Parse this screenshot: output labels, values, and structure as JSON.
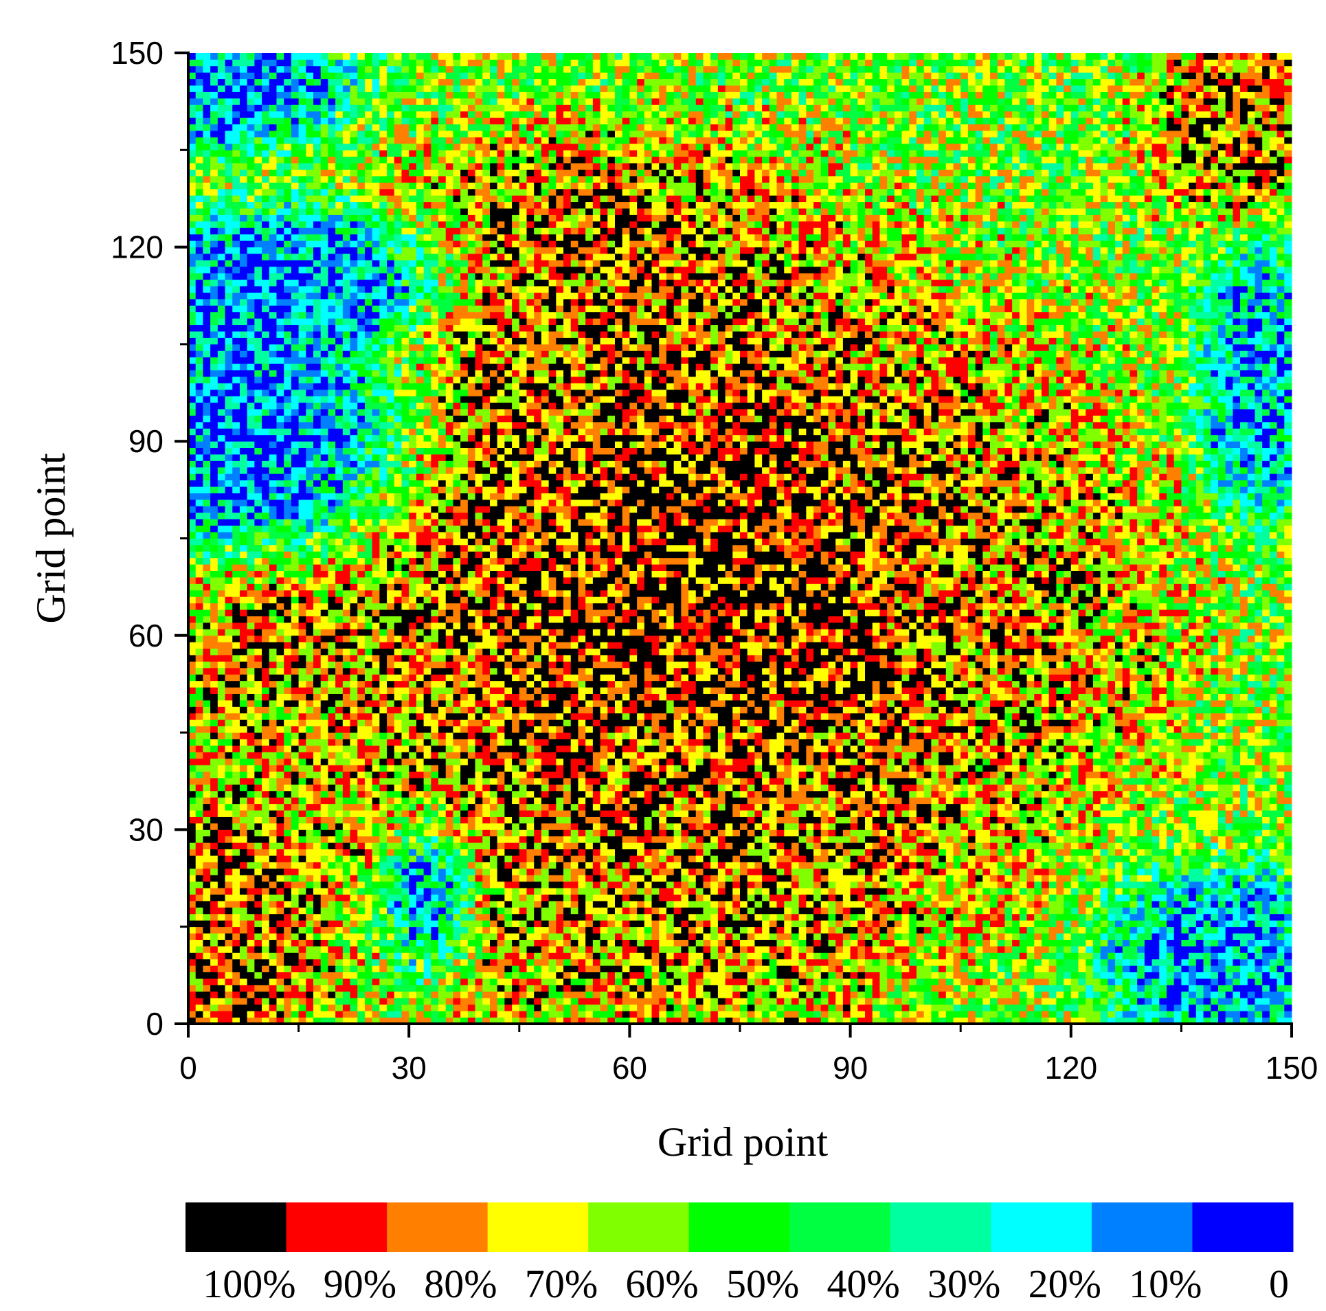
{
  "chart_data": {
    "type": "heatmap",
    "title": "",
    "xlabel": "Grid point",
    "ylabel": "Grid point",
    "xlim": [
      0,
      150
    ],
    "ylim": [
      0,
      150
    ],
    "grid_size": 150,
    "grid": false,
    "x_ticks": [
      "0",
      "30",
      "60",
      "90",
      "120",
      "150"
    ],
    "y_ticks": [
      "0",
      "30",
      "60",
      "90",
      "120",
      "150"
    ],
    "x_minor_ticks": [
      15,
      45,
      75,
      105,
      135
    ],
    "y_minor_ticks": [
      15,
      45,
      75,
      105,
      135
    ],
    "legend": {
      "placement": "bottom",
      "colors": [
        "#000000",
        "#ff0000",
        "#ff8000",
        "#ffff00",
        "#80ff00",
        "#00ff00",
        "#00ff40",
        "#00ffa0",
        "#00ffff",
        "#0080ff",
        "#0000ff"
      ],
      "labels": [
        "100%",
        "90%",
        "80%",
        "70%",
        "60%",
        "50%",
        "40%",
        "30%",
        "20%",
        "10%",
        "0"
      ]
    },
    "regions": [
      {
        "description": "center high-value core",
        "cx": 70,
        "cy": 65,
        "rx": 38,
        "ry": 38,
        "level": 1.0
      },
      {
        "description": "upper central high region",
        "cx": 55,
        "cy": 115,
        "rx": 22,
        "ry": 16,
        "level": 0.9
      },
      {
        "description": "lower central high region",
        "cx": 65,
        "cy": 25,
        "rx": 25,
        "ry": 20,
        "level": 0.85
      },
      {
        "description": "bottom-left high region",
        "cx": 6,
        "cy": 15,
        "rx": 10,
        "ry": 18,
        "level": 0.9
      },
      {
        "description": "left-middle high region",
        "cx": 12,
        "cy": 60,
        "rx": 14,
        "ry": 12,
        "level": 0.85
      },
      {
        "description": "top-right high region",
        "cx": 143,
        "cy": 140,
        "rx": 9,
        "ry": 12,
        "level": 0.9
      },
      {
        "description": "right-middle high region",
        "cx": 112,
        "cy": 65,
        "rx": 14,
        "ry": 20,
        "level": 0.8
      },
      {
        "description": "left blue void",
        "cx": 10,
        "cy": 92,
        "rx": 16,
        "ry": 18,
        "level": 0.0
      },
      {
        "description": "upper-left blue patch",
        "cx": 18,
        "cy": 115,
        "rx": 16,
        "ry": 8,
        "level": 0.0
      },
      {
        "description": "bottom blue patch",
        "cx": 33,
        "cy": 20,
        "rx": 5,
        "ry": 9,
        "level": 0.0
      },
      {
        "description": "bottom-right blue patch",
        "cx": 140,
        "cy": 10,
        "rx": 12,
        "ry": 10,
        "level": 0.05
      },
      {
        "description": "right blue band",
        "cx": 145,
        "cy": 100,
        "rx": 6,
        "ry": 16,
        "level": 0.1
      },
      {
        "description": "top-left blue corner",
        "cx": 5,
        "cy": 145,
        "rx": 12,
        "ry": 7,
        "level": 0.05
      }
    ]
  }
}
